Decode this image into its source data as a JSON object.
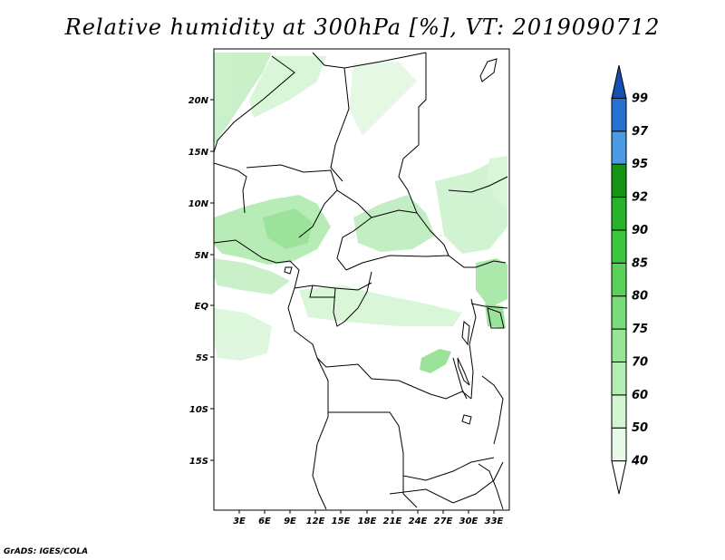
{
  "title": "Relative humidity at 300hPa [%], VT: 2019090712",
  "credit": "GrADS: IGES/COLA",
  "map": {
    "lat_labels": [
      "20N",
      "15N",
      "10N",
      "5N",
      "EQ",
      "5S",
      "10S",
      "15S"
    ],
    "lon_labels": [
      "3E",
      "6E",
      "9E",
      "12E",
      "15E",
      "18E",
      "21E",
      "24E",
      "27E",
      "30E",
      "33E"
    ]
  },
  "colorbar": {
    "levels": [
      "40",
      "50",
      "60",
      "70",
      "75",
      "80",
      "85",
      "90",
      "92",
      "95",
      "97",
      "99"
    ],
    "colors": [
      "#ffffff",
      "#e8fae8",
      "#d2f5d2",
      "#b4eeb4",
      "#96e696",
      "#78dc78",
      "#5ad25a",
      "#3cc83c",
      "#28b428",
      "#149614",
      "#4b9be6",
      "#2870d2",
      "#1450b4"
    ]
  },
  "chart_data": {
    "type": "heatmap",
    "title": "Relative humidity at 300hPa [%], VT: 2019090712",
    "variable": "Relative humidity at 300hPa",
    "unit": "%",
    "valid_time": "2019090712",
    "lon_range": [
      0,
      35
    ],
    "lat_range": [
      -19,
      24
    ],
    "color_levels": [
      40,
      50,
      60,
      70,
      75,
      80,
      85,
      90,
      92,
      95,
      97,
      99
    ]
  }
}
